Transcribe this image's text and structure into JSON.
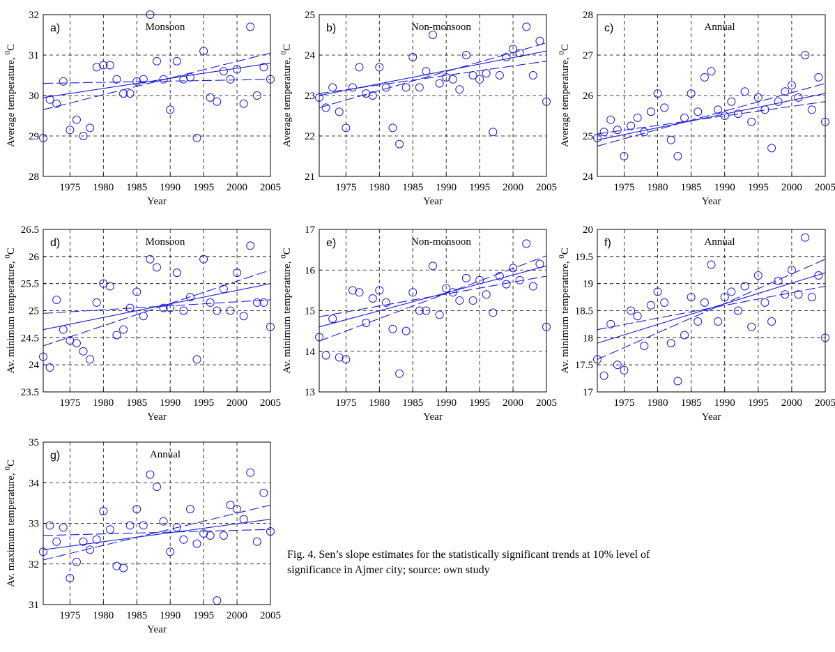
{
  "caption": {
    "line1": "Fig. 4. Sen’s slope estimates for the statistically significant trends at 10% level of",
    "line2": "significance in Ajmer city; source: own study"
  },
  "colors": {
    "series": "#1a1adc",
    "frame": "#000000",
    "grid": "#000000",
    "background": "#ffffff"
  },
  "chart_data": [
    {
      "type": "scatter",
      "tag": "a)",
      "title": "Monsoon",
      "xlabel": "Year",
      "ylabel": "Average temperature, ",
      "ylabel_sup": "0",
      "ylabel_unit": "C",
      "xlim": [
        1971,
        2005
      ],
      "ylim": [
        28,
        32
      ],
      "xticks": [
        1975,
        1980,
        1985,
        1990,
        1995,
        2000,
        2005
      ],
      "yticks": [
        28,
        29,
        30,
        31,
        32
      ],
      "grid": true,
      "x": [
        1971,
        1972,
        1973,
        1974,
        1975,
        1976,
        1977,
        1978,
        1979,
        1980,
        1981,
        1982,
        1983,
        1984,
        1985,
        1986,
        1987,
        1988,
        1989,
        1990,
        1991,
        1992,
        1993,
        1994,
        1995,
        1996,
        1997,
        1998,
        1999,
        2000,
        2001,
        2002,
        2003,
        2004,
        2005
      ],
      "values": [
        28.95,
        29.9,
        29.8,
        30.35,
        29.15,
        29.4,
        29.0,
        29.2,
        30.7,
        30.75,
        30.75,
        30.4,
        30.05,
        30.05,
        30.35,
        30.4,
        32.0,
        30.85,
        30.4,
        29.65,
        30.85,
        30.4,
        30.45,
        28.95,
        31.1,
        29.95,
        29.85,
        30.6,
        30.4,
        30.65,
        29.8,
        31.7,
        30.0,
        30.7,
        30.4
      ],
      "trend": [
        [
          1971,
          29.95
        ],
        [
          2005,
          30.8
        ]
      ],
      "conf_upper": [
        [
          1971,
          30.3
        ],
        [
          2005,
          30.4
        ]
      ],
      "conf_lower": [
        [
          1971,
          29.65
        ],
        [
          2005,
          31.05
        ]
      ]
    },
    {
      "type": "scatter",
      "tag": "b)",
      "title": "Non-monsoon",
      "xlabel": "Year",
      "ylabel": "Average temperature, ",
      "ylabel_sup": "0",
      "ylabel_unit": "C",
      "xlim": [
        1971,
        2005
      ],
      "ylim": [
        21,
        25
      ],
      "xticks": [
        1975,
        1980,
        1985,
        1990,
        1995,
        2000,
        2005
      ],
      "yticks": [
        21,
        22,
        23,
        24,
        25
      ],
      "grid": true,
      "x": [
        1971,
        1972,
        1973,
        1974,
        1975,
        1976,
        1977,
        1978,
        1979,
        1980,
        1981,
        1982,
        1983,
        1984,
        1985,
        1986,
        1987,
        1988,
        1989,
        1990,
        1991,
        1992,
        1993,
        1994,
        1995,
        1996,
        1997,
        1998,
        1999,
        2000,
        2001,
        2002,
        2003,
        2004,
        2005
      ],
      "values": [
        22.95,
        22.7,
        23.2,
        22.6,
        22.2,
        23.2,
        23.7,
        23.05,
        23.0,
        23.7,
        23.2,
        22.2,
        21.8,
        23.2,
        23.95,
        23.2,
        23.6,
        24.5,
        23.3,
        23.45,
        23.4,
        23.15,
        24.0,
        23.5,
        23.4,
        23.55,
        22.1,
        23.5,
        23.95,
        24.15,
        24.05,
        24.7,
        23.5,
        24.35,
        22.85
      ],
      "trend": [
        [
          1971,
          23.0
        ],
        [
          2005,
          24.1
        ]
      ],
      "conf_upper": [
        [
          1971,
          23.05
        ],
        [
          2005,
          23.85
        ]
      ],
      "conf_lower": [
        [
          1971,
          22.7
        ],
        [
          2005,
          24.3
        ]
      ]
    },
    {
      "type": "scatter",
      "tag": "c)",
      "title": "Annual",
      "xlabel": "Year",
      "ylabel": "Average temperature, ",
      "ylabel_sup": "0",
      "ylabel_unit": "C",
      "xlim": [
        1971,
        2005
      ],
      "ylim": [
        24,
        28
      ],
      "xticks": [
        1975,
        1980,
        1985,
        1990,
        1995,
        2000,
        2005
      ],
      "yticks": [
        24,
        25,
        26,
        27,
        28
      ],
      "grid": true,
      "x": [
        1971,
        1972,
        1973,
        1974,
        1975,
        1976,
        1977,
        1978,
        1979,
        1980,
        1981,
        1982,
        1983,
        1984,
        1985,
        1986,
        1987,
        1988,
        1989,
        1990,
        1991,
        1992,
        1993,
        1994,
        1995,
        1996,
        1997,
        1998,
        1999,
        2000,
        2001,
        2002,
        2003,
        2004,
        2005
      ],
      "values": [
        24.95,
        25.1,
        25.4,
        25.15,
        24.5,
        25.25,
        25.45,
        25.1,
        25.6,
        26.05,
        25.7,
        24.9,
        24.5,
        25.45,
        26.05,
        25.6,
        26.45,
        26.6,
        25.65,
        25.5,
        25.85,
        25.55,
        26.1,
        25.35,
        25.95,
        25.65,
        24.7,
        25.85,
        26.1,
        26.25,
        25.95,
        27.0,
        25.65,
        26.45,
        25.35
      ],
      "trend": [
        [
          1971,
          24.9
        ],
        [
          2005,
          26.05
        ]
      ],
      "conf_upper": [
        [
          1971,
          25.05
        ],
        [
          2005,
          25.85
        ]
      ],
      "conf_lower": [
        [
          1971,
          24.75
        ],
        [
          2005,
          26.3
        ]
      ]
    },
    {
      "type": "scatter",
      "tag": "d)",
      "title": "Monsoon",
      "xlabel": "Year",
      "ylabel": "Av. minimum temperature, ",
      "ylabel_sup": "0",
      "ylabel_unit": "C",
      "xlim": [
        1971,
        2005
      ],
      "ylim": [
        23.5,
        26.5
      ],
      "xticks": [
        1975,
        1980,
        1985,
        1990,
        1995,
        2000,
        2005
      ],
      "yticks": [
        23.5,
        24,
        24.5,
        25,
        25.5,
        26,
        26.5
      ],
      "grid": true,
      "x": [
        1971,
        1972,
        1973,
        1974,
        1975,
        1976,
        1977,
        1978,
        1979,
        1980,
        1981,
        1982,
        1983,
        1984,
        1985,
        1986,
        1987,
        1988,
        1989,
        1990,
        1991,
        1992,
        1993,
        1994,
        1995,
        1996,
        1997,
        1998,
        1999,
        2000,
        2001,
        2002,
        2003,
        2004,
        2005
      ],
      "values": [
        24.15,
        23.95,
        25.2,
        24.65,
        24.45,
        24.4,
        24.25,
        24.1,
        25.15,
        25.5,
        25.45,
        24.55,
        24.65,
        25.05,
        25.35,
        24.9,
        25.95,
        25.8,
        25.05,
        25.05,
        25.7,
        25.0,
        25.25,
        24.1,
        25.95,
        25.15,
        25.0,
        25.4,
        25.0,
        25.7,
        24.9,
        26.2,
        25.15,
        25.15,
        24.7
      ],
      "trend": [
        [
          1971,
          24.65
        ],
        [
          2005,
          25.5
        ]
      ],
      "conf_upper": [
        [
          1971,
          24.95
        ],
        [
          2005,
          25.2
        ]
      ],
      "conf_lower": [
        [
          1971,
          24.35
        ],
        [
          2005,
          25.75
        ]
      ]
    },
    {
      "type": "scatter",
      "tag": "e)",
      "title": "Non-monsoon",
      "xlabel": "Year",
      "ylabel": "Av. minimum temperature, ",
      "ylabel_sup": "0",
      "ylabel_unit": "C",
      "xlim": [
        1971,
        2005
      ],
      "ylim": [
        13,
        17
      ],
      "xticks": [
        1975,
        1980,
        1985,
        1990,
        1995,
        2000,
        2005
      ],
      "yticks": [
        13,
        14,
        15,
        16,
        17
      ],
      "grid": true,
      "x": [
        1971,
        1972,
        1973,
        1974,
        1975,
        1976,
        1977,
        1978,
        1979,
        1980,
        1981,
        1982,
        1983,
        1984,
        1985,
        1986,
        1987,
        1988,
        1989,
        1990,
        1991,
        1992,
        1993,
        1994,
        1995,
        1996,
        1997,
        1998,
        1999,
        2000,
        2001,
        2002,
        2003,
        2004,
        2005
      ],
      "values": [
        14.35,
        13.9,
        14.8,
        13.85,
        13.8,
        15.5,
        15.45,
        14.7,
        15.3,
        15.5,
        15.2,
        14.55,
        13.45,
        14.5,
        15.45,
        15.0,
        15.0,
        16.1,
        14.9,
        15.55,
        15.45,
        15.25,
        15.8,
        15.25,
        15.75,
        15.4,
        14.95,
        15.85,
        15.65,
        16.05,
        15.75,
        16.65,
        15.6,
        16.15,
        14.6
      ],
      "trend": [
        [
          1971,
          14.6
        ],
        [
          2005,
          16.1
        ]
      ],
      "conf_upper": [
        [
          1971,
          14.85
        ],
        [
          2005,
          15.85
        ]
      ],
      "conf_lower": [
        [
          1971,
          14.25
        ],
        [
          2005,
          16.35
        ]
      ]
    },
    {
      "type": "scatter",
      "tag": "f)",
      "title": "Annual",
      "xlabel": "Year",
      "ylabel": "Av. minimum temperature, ",
      "ylabel_sup": "0",
      "ylabel_unit": "C",
      "xlim": [
        1971,
        2005
      ],
      "ylim": [
        17,
        20
      ],
      "xticks": [
        1975,
        1980,
        1985,
        1990,
        1995,
        2000,
        2005
      ],
      "yticks": [
        17,
        17.5,
        18,
        18.5,
        19,
        19.5,
        20
      ],
      "grid": true,
      "x": [
        1971,
        1972,
        1973,
        1974,
        1975,
        1976,
        1977,
        1978,
        1979,
        1980,
        1981,
        1982,
        1983,
        1984,
        1985,
        1986,
        1987,
        1988,
        1989,
        1990,
        1991,
        1992,
        1993,
        1994,
        1995,
        1996,
        1997,
        1998,
        1999,
        2000,
        2001,
        2002,
        2003,
        2004,
        2005
      ],
      "values": [
        17.6,
        17.3,
        18.25,
        17.5,
        17.4,
        18.5,
        18.4,
        17.85,
        18.6,
        18.85,
        18.65,
        17.9,
        17.2,
        18.05,
        18.75,
        18.3,
        18.65,
        19.35,
        18.3,
        18.75,
        18.85,
        18.5,
        18.95,
        18.2,
        19.15,
        18.65,
        18.3,
        19.05,
        18.8,
        19.25,
        18.8,
        19.85,
        18.75,
        19.15,
        18.0
      ],
      "trend": [
        [
          1971,
          17.9
        ],
        [
          2005,
          19.2
        ]
      ],
      "conf_upper": [
        [
          1971,
          18.15
        ],
        [
          2005,
          18.95
        ]
      ],
      "conf_lower": [
        [
          1971,
          17.6
        ],
        [
          2005,
          19.45
        ]
      ]
    },
    {
      "type": "scatter",
      "tag": "g)",
      "title": "Annual",
      "xlabel": "Year",
      "ylabel": "Av. maximum temperature, ",
      "ylabel_sup": "0",
      "ylabel_unit": "C",
      "xlim": [
        1971,
        2005
      ],
      "ylim": [
        31,
        35
      ],
      "xticks": [
        1975,
        1980,
        1985,
        1990,
        1995,
        2000,
        2005
      ],
      "yticks": [
        31,
        32,
        33,
        34,
        35
      ],
      "grid": true,
      "x": [
        1971,
        1972,
        1973,
        1974,
        1975,
        1976,
        1977,
        1978,
        1979,
        1980,
        1981,
        1982,
        1983,
        1984,
        1985,
        1986,
        1987,
        1988,
        1989,
        1990,
        1991,
        1992,
        1993,
        1994,
        1995,
        1996,
        1997,
        1998,
        1999,
        2000,
        2001,
        2002,
        2003,
        2004,
        2005
      ],
      "values": [
        32.3,
        32.95,
        32.55,
        32.9,
        31.65,
        32.05,
        32.55,
        32.35,
        32.6,
        33.3,
        32.85,
        31.95,
        31.9,
        32.95,
        33.35,
        32.95,
        34.2,
        33.9,
        33.05,
        32.3,
        32.9,
        32.6,
        33.35,
        32.5,
        32.75,
        32.7,
        31.1,
        32.7,
        33.45,
        33.35,
        33.1,
        34.25,
        32.55,
        33.75,
        32.8
      ],
      "trend": [
        [
          1971,
          32.35
        ],
        [
          2005,
          33.1
        ]
      ],
      "conf_upper": [
        [
          1971,
          32.7
        ],
        [
          2005,
          32.85
        ]
      ],
      "conf_lower": [
        [
          1971,
          32.1
        ],
        [
          2005,
          33.45
        ]
      ]
    }
  ]
}
